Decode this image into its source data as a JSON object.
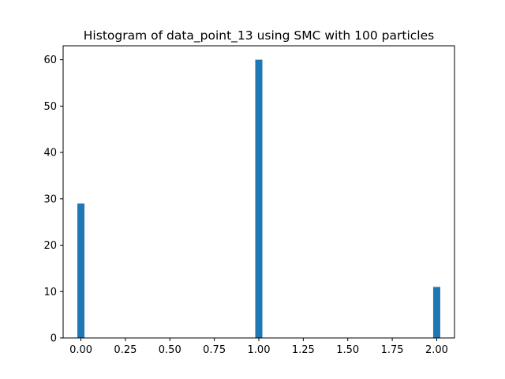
{
  "chart_data": {
    "type": "bar",
    "title": "Histogram of data_point_13 using SMC with 100 particles",
    "xlabel": "",
    "ylabel": "",
    "bars": [
      {
        "x": 0.0,
        "value": 29
      },
      {
        "x": 1.0,
        "value": 60
      },
      {
        "x": 2.0,
        "value": 11
      }
    ],
    "bin_width": 0.04,
    "xlim": [
      -0.1,
      2.1
    ],
    "ylim": [
      0,
      63
    ],
    "x_ticks": [
      "0.00",
      "0.25",
      "0.50",
      "0.75",
      "1.00",
      "1.25",
      "1.50",
      "1.75",
      "2.00"
    ],
    "y_ticks": [
      "0",
      "10",
      "20",
      "30",
      "40",
      "50",
      "60"
    ],
    "grid": false,
    "bar_color": "#1f77b4"
  }
}
